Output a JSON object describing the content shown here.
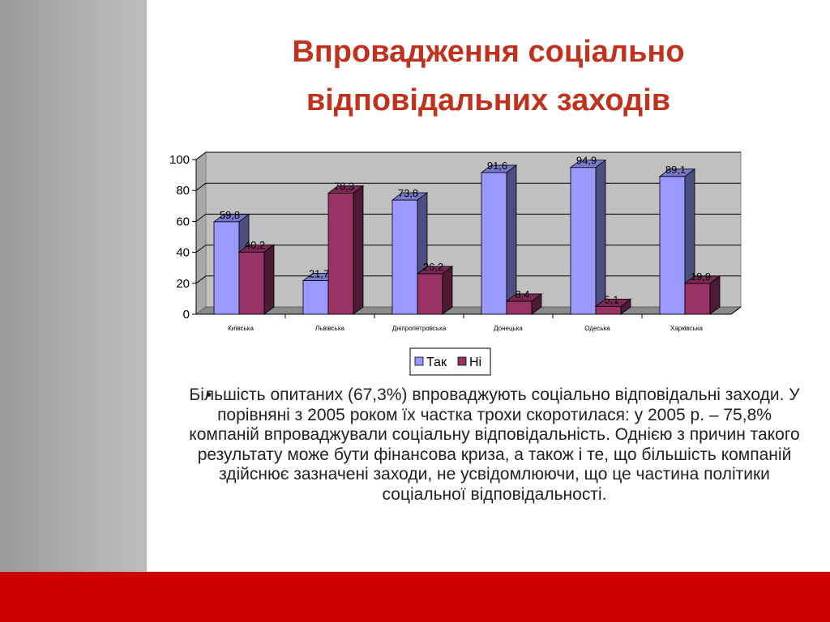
{
  "slide": {
    "title_line1": "Впровадження соціально",
    "title_line2": "відповідальних заходів",
    "bullet_text": "Більшість опитаних (67,3%) впроваджують соціально відповідальні заходи. У порівняні з 2005 роком їх частка трохи скоротилася: у 2005 р. – 75,8% компаній впроваджували соціальну відповідальність. Однією з причин такого результату може бути фінансова криза, а також і те, що більшість компаній  здійснює зазначені заходи, не усвідомлюючи, що це частина політики соціальної відповідальності.",
    "colors": {
      "title": "#c0321e",
      "bottom_band": "#cc0000",
      "left_band": "#b4b4b6"
    }
  },
  "chart_data": {
    "type": "bar",
    "style": "3d-clustered",
    "categories": [
      "Київська",
      "Львівська",
      "Дніпропетровська",
      "Донецька",
      "Одеська",
      "Харківська"
    ],
    "series": [
      {
        "name": "Так",
        "values": [
          59.8,
          21.7,
          73.8,
          91.6,
          94.9,
          89.1
        ],
        "labels": [
          "59,8",
          "21,7",
          "73,8",
          "91,6",
          "94,9",
          "89,1"
        ],
        "color": "#9999ff"
      },
      {
        "name": "Ні",
        "values": [
          40.2,
          78.3,
          26.2,
          8.4,
          5.1,
          19.9
        ],
        "labels": [
          "40,2",
          "78,3",
          "26,2",
          "8,4",
          "5,1",
          "19,9"
        ],
        "color": "#993366"
      }
    ],
    "y_ticks": [
      "0",
      "20",
      "40",
      "60",
      "80",
      "100"
    ],
    "ylim": [
      0,
      100
    ],
    "grid": true,
    "legend": "bottom"
  }
}
